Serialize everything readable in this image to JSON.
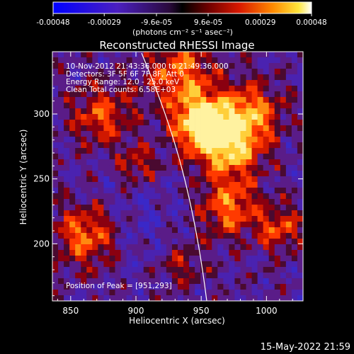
{
  "chart_data": {
    "type": "heatmap",
    "title": "Reconstructed RHESSI Image",
    "xlabel": "Heliocentric X (arcsec)",
    "ylabel": "Heliocentric Y (arcsec)",
    "xlim": [
      836,
      1028
    ],
    "ylim": [
      156,
      348
    ],
    "x_ticks": [
      850,
      900,
      950,
      1000
    ],
    "y_ticks": [
      200,
      250,
      300
    ],
    "colorbar": {
      "ticks": [
        "-0.00048",
        "-0.00029",
        "-9.6e-05",
        "9.6e-05",
        "0.00029",
        "0.00048"
      ],
      "range": [
        -0.00048,
        0.00048
      ],
      "unit_label": "(photons cm⁻² s⁻¹ asec⁻²)"
    },
    "annotations": [
      "10-Nov-2012 21:43:36.000 to 21:49:36.000",
      "Detectors: 3F 5F 6F 7F 8F, Att 0",
      "Energy Range: 12.0 - 25.0 keV",
      "Clean    Total counts: 6.58E+03"
    ],
    "peak_label": "Position of Peak = [951,293]",
    "peak": {
      "x": 951,
      "y": 293
    },
    "grid": false,
    "colors": {
      "background": "#000000",
      "text": "#ffffff",
      "limb": "#ffffff"
    }
  },
  "footer": {
    "timestamp": "15-May-2022 21:59"
  }
}
